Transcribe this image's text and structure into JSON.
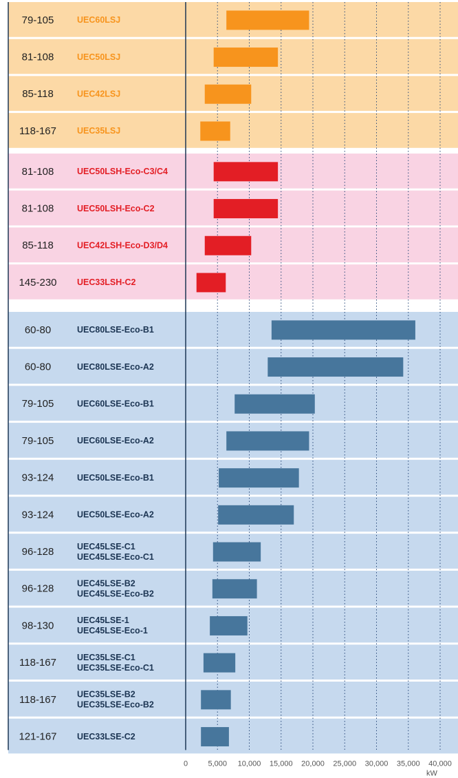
{
  "chart_data": {
    "type": "range-bar",
    "xlim": [
      0,
      40000
    ],
    "xticks": [
      0,
      {
        "value": 5000,
        "label": "5,000"
      },
      {
        "value": 10000,
        "label": "10,000"
      },
      {
        "value": 15000,
        "label": "15,000"
      },
      {
        "value": 20000,
        "label": "20,000"
      },
      {
        "value": 25000,
        "label": "25,000"
      },
      {
        "value": 30000,
        "label": "30,000"
      },
      {
        "value": 35000,
        "label": "35,000"
      },
      {
        "value": 40000,
        "label": "40,000"
      }
    ],
    "x_unit": "kW",
    "grid": true,
    "groups": [
      {
        "background": "#fcd9a6",
        "color": "#f7941d",
        "label_color": "#f7941d",
        "rows": [
          {
            "speed": "79-105",
            "model": [
              "UEC60LSJ"
            ],
            "start": 6400,
            "end": 19400
          },
          {
            "speed": "81-108",
            "model": [
              "UEC50LSJ"
            ],
            "start": 4400,
            "end": 14500
          },
          {
            "speed": "85-118",
            "model": [
              "UEC42LSJ"
            ],
            "start": 3000,
            "end": 10300
          },
          {
            "speed": "118-167",
            "model": [
              "UEC35LSJ"
            ],
            "start": 2300,
            "end": 7000
          }
        ]
      },
      {
        "background": "#f9d3e3",
        "color": "#e31e25",
        "label_color": "#e31e25",
        "rows": [
          {
            "speed": "81-108",
            "model": [
              "UEC50LSH-Eco-C3/C4"
            ],
            "start": 4400,
            "end": 14500
          },
          {
            "speed": "81-108",
            "model": [
              "UEC50LSH-Eco-C2"
            ],
            "start": 4400,
            "end": 14500
          },
          {
            "speed": "85-118",
            "model": [
              "UEC42LSH-Eco-D3/D4"
            ],
            "start": 3000,
            "end": 10300
          },
          {
            "speed": "145-230",
            "model": [
              "UEC33LSH-C2"
            ],
            "start": 1700,
            "end": 6300
          }
        ]
      },
      {
        "background": "#c6d9ee",
        "color": "#47769c",
        "label_color": "#1c3553",
        "rows": [
          {
            "speed": "60-80",
            "model": [
              "UEC80LSE-Eco-B1"
            ],
            "start": 13500,
            "end": 36100
          },
          {
            "speed": "60-80",
            "model": [
              "UEC80LSE-Eco-A2"
            ],
            "start": 12900,
            "end": 34200
          },
          {
            "speed": "79-105",
            "model": [
              "UEC60LSE-Eco-B1"
            ],
            "start": 7700,
            "end": 20300
          },
          {
            "speed": "79-105",
            "model": [
              "UEC60LSE-Eco-A2"
            ],
            "start": 6400,
            "end": 19400
          },
          {
            "speed": "93-124",
            "model": [
              "UEC50LSE-Eco-B1"
            ],
            "start": 5200,
            "end": 17800
          },
          {
            "speed": "93-124",
            "model": [
              "UEC50LSE-Eco-A2"
            ],
            "start": 5100,
            "end": 17000
          },
          {
            "speed": "96-128",
            "model": [
              "UEC45LSE-C1",
              "UEC45LSE-Eco-C1"
            ],
            "start": 4300,
            "end": 11800
          },
          {
            "speed": "96-128",
            "model": [
              "UEC45LSE-B2",
              "UEC45LSE-Eco-B2"
            ],
            "start": 4200,
            "end": 11200
          },
          {
            "speed": "98-130",
            "model": [
              "UEC45LSE-1",
              "UEC45LSE-Eco-1"
            ],
            "start": 3800,
            "end": 9700
          },
          {
            "speed": "118-167",
            "model": [
              "UEC35LSE-C1",
              "UEC35LSE-Eco-C1"
            ],
            "start": 2800,
            "end": 7800
          },
          {
            "speed": "118-167",
            "model": [
              "UEC35LSE-B2",
              "UEC35LSE-Eco-B2"
            ],
            "start": 2400,
            "end": 7100
          },
          {
            "speed": "121-167",
            "model": [
              "UEC33LSE-C2"
            ],
            "start": 2400,
            "end": 6800
          }
        ]
      }
    ]
  }
}
